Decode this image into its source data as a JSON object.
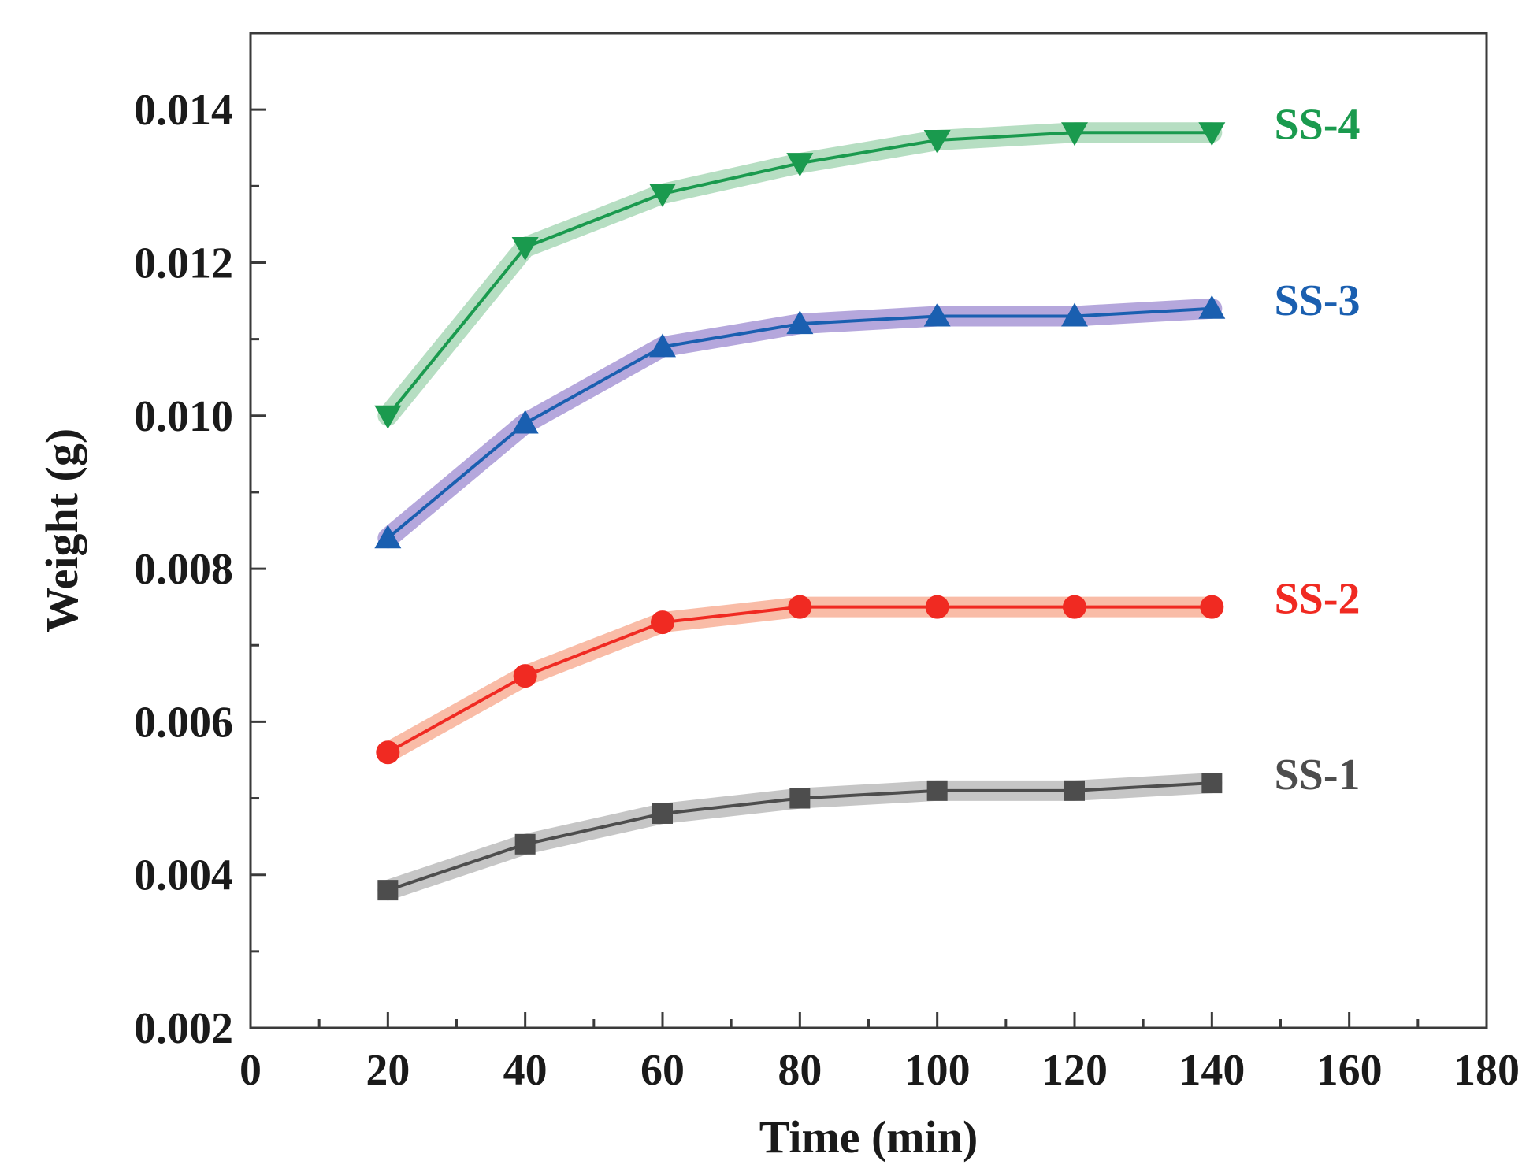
{
  "chart_data": {
    "type": "line",
    "xlabel": "Time (min)",
    "ylabel": "Weight (g)",
    "xlim": [
      0,
      180
    ],
    "ylim": [
      0.002,
      0.015
    ],
    "x_ticks": [
      0,
      20,
      40,
      60,
      80,
      100,
      120,
      140,
      160,
      180
    ],
    "x_tick_labels": [
      "0",
      "20",
      "40",
      "60",
      "80",
      "100",
      "120",
      "140",
      "160",
      "180"
    ],
    "y_ticks": [
      0.002,
      0.004,
      0.006,
      0.008,
      0.01,
      0.012,
      0.014
    ],
    "y_tick_labels": [
      "0.002",
      "0.004",
      "0.006",
      "0.008",
      "0.010",
      "0.012",
      "0.014"
    ],
    "grid": false,
    "legend": "none; series labelled directly at the right end of each line",
    "x": [
      20,
      40,
      60,
      80,
      100,
      120,
      140
    ],
    "series": [
      {
        "name": "SS-1",
        "values": [
          0.0038,
          0.0044,
          0.0048,
          0.005,
          0.0051,
          0.0051,
          0.0052
        ],
        "color": "#4d4d4d",
        "band_color": "#b3b3b3",
        "marker": "square"
      },
      {
        "name": "SS-2",
        "values": [
          0.0056,
          0.0066,
          0.0073,
          0.0075,
          0.0075,
          0.0075,
          0.0075
        ],
        "color": "#f02a22",
        "band_color": "#f7a58a",
        "marker": "circle"
      },
      {
        "name": "SS-3",
        "values": [
          0.0084,
          0.0099,
          0.0109,
          0.0112,
          0.0113,
          0.0113,
          0.0114
        ],
        "color": "#1a5fb0",
        "band_color": "#9c8ad0",
        "marker": "triangle-up"
      },
      {
        "name": "SS-4",
        "values": [
          0.01,
          0.0122,
          0.0129,
          0.0133,
          0.0136,
          0.0137,
          0.0137
        ],
        "color": "#1a9a4e",
        "band_color": "#9ed3ad",
        "marker": "triangle-down"
      }
    ]
  }
}
